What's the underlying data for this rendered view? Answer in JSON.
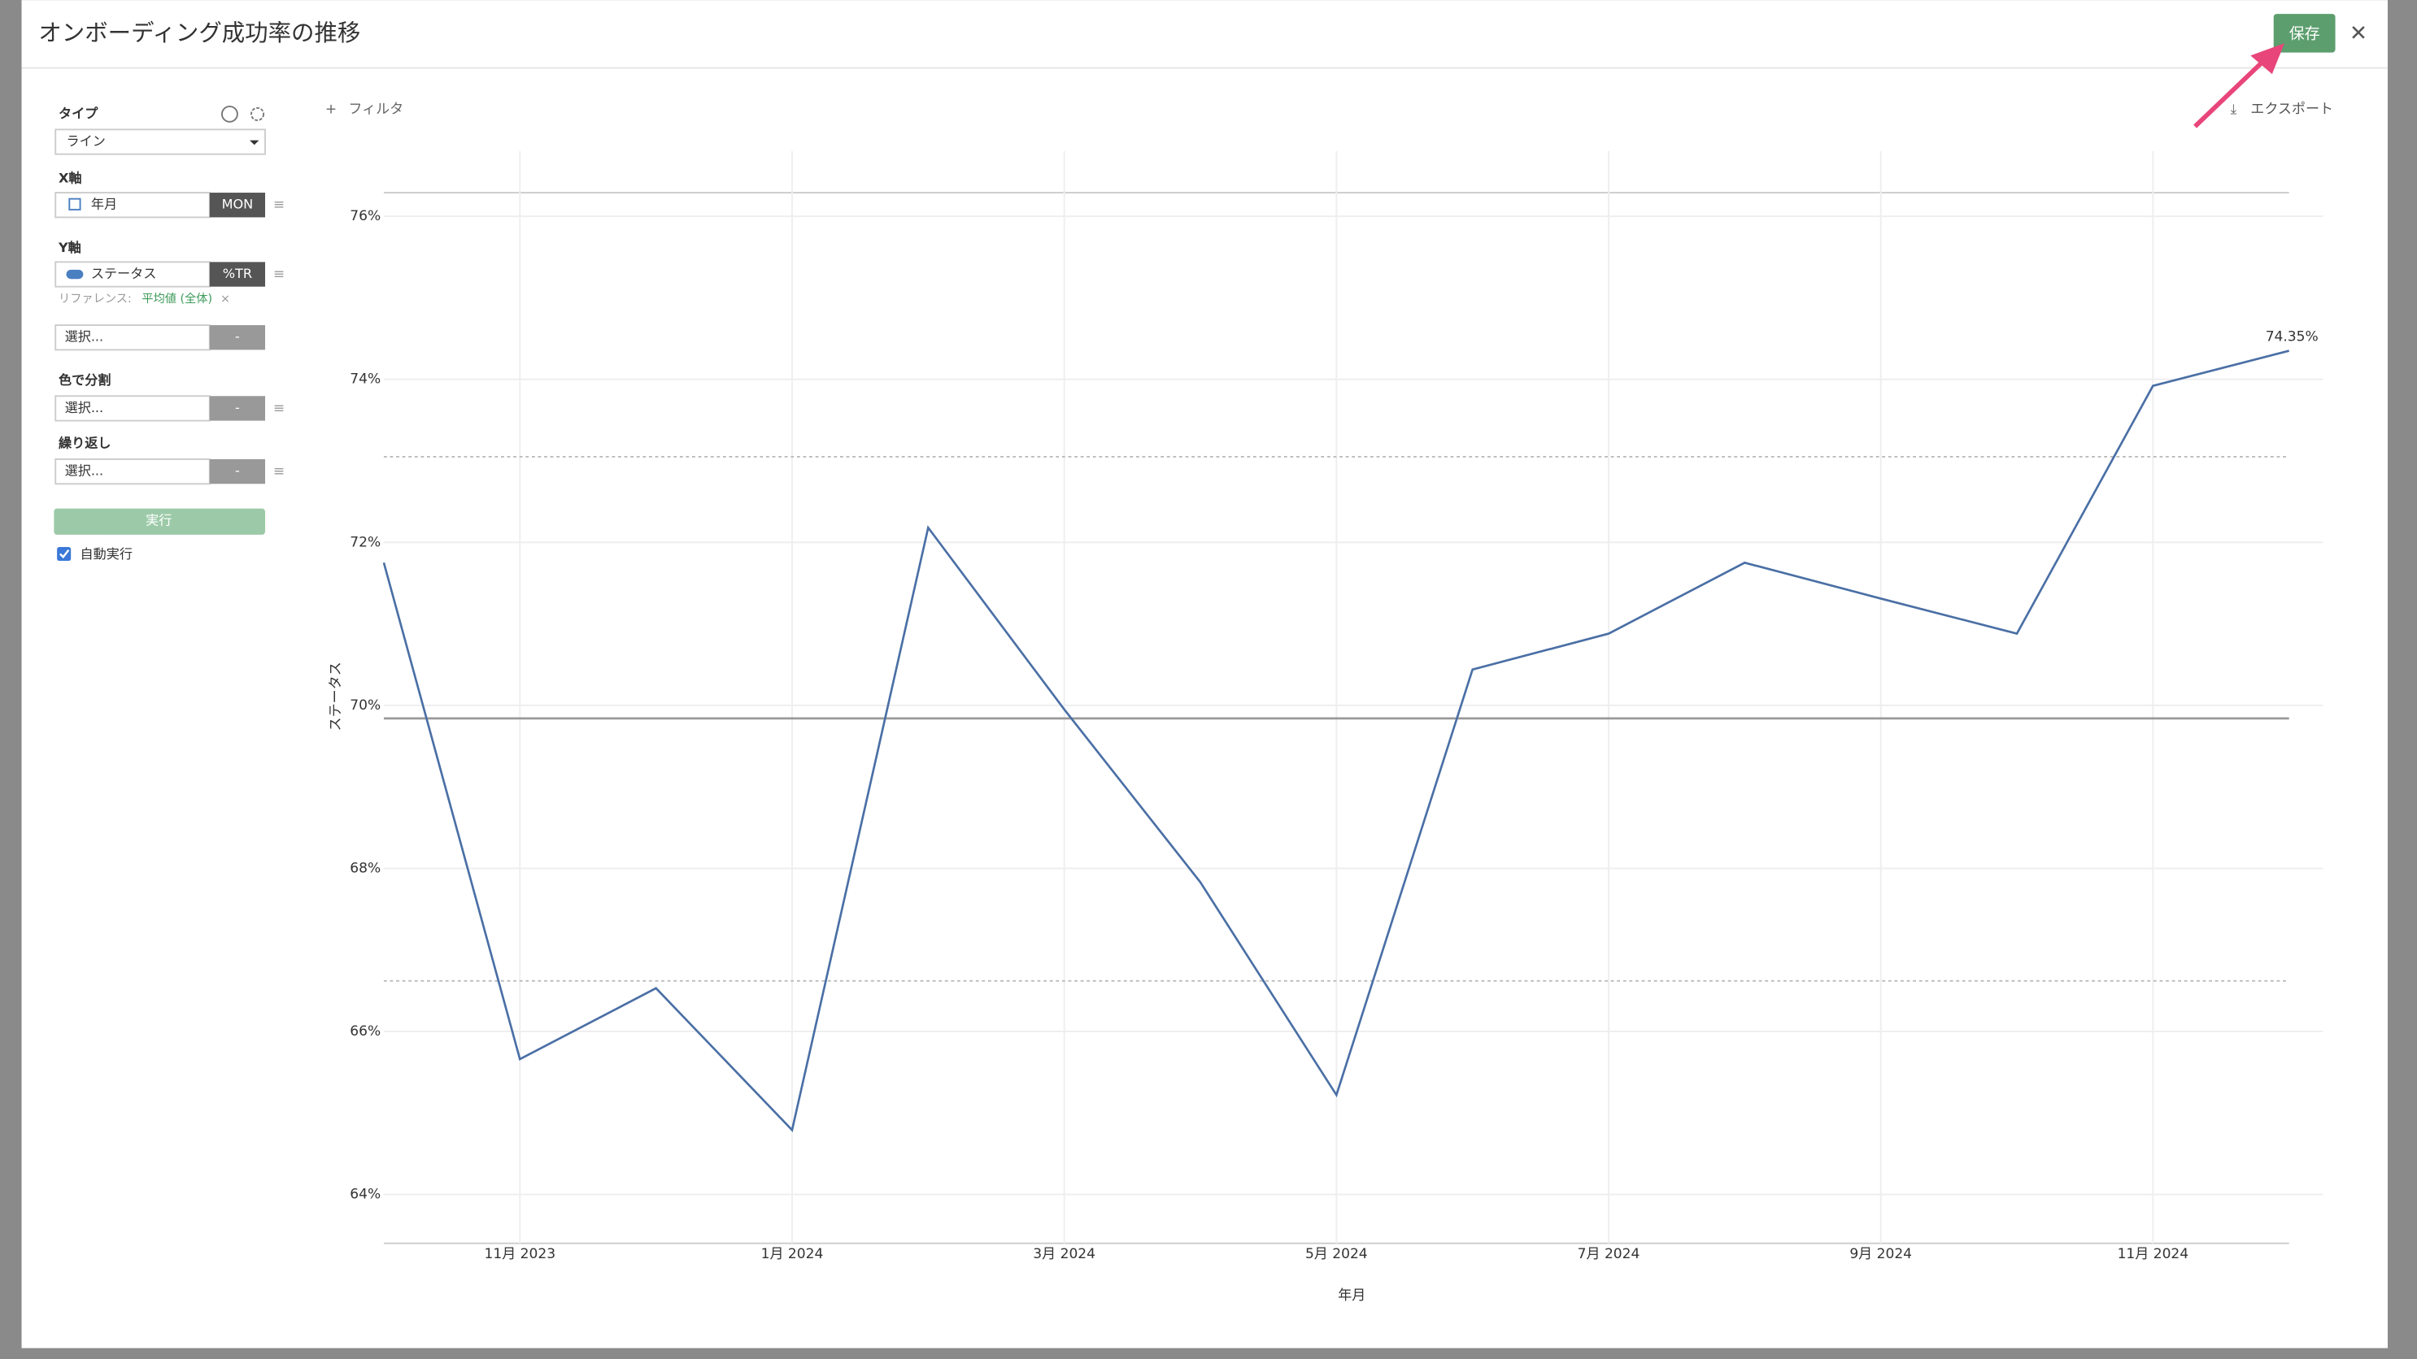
{
  "ui": {
    "title": "オンボーディング成功率の推移",
    "save": "保存",
    "filter": "フィルタ",
    "export": "エクスポート",
    "sidebar": {
      "type_label": "タイプ",
      "type_value": "ライン",
      "x_label": "X軸",
      "x_field": "年月",
      "x_unit": "MON",
      "y_label": "Y軸",
      "y_field": "ステータス",
      "y_agg": "%TR",
      "reference_prefix": "リファレンス:",
      "reference_value": "平均値 (全体)",
      "select1": "選択...",
      "color_label": "色で分割",
      "select2": "選択...",
      "repeat_label": "繰り返し",
      "select3": "選択...",
      "dash": "-",
      "run": "実行",
      "auto_run": "自動実行"
    }
  },
  "chart_data": {
    "type": "line",
    "x_label": "年月",
    "y_label": "ステータス",
    "x": [
      "2023-10",
      "2023-11",
      "2023-12",
      "2024-01",
      "2024-02",
      "2024-03",
      "2024-04",
      "2024-05",
      "2024-06",
      "2024-07",
      "2024-08",
      "2024-09",
      "2024-10",
      "2024-11",
      "2024-12"
    ],
    "xticks": [
      {
        "value": "2023-11",
        "label": "11月 2023"
      },
      {
        "value": "2024-01",
        "label": "1月 2024"
      },
      {
        "value": "2024-03",
        "label": "3月 2024"
      },
      {
        "value": "2024-05",
        "label": "5月 2024"
      },
      {
        "value": "2024-07",
        "label": "7月 2024"
      },
      {
        "value": "2024-09",
        "label": "9月 2024"
      },
      {
        "value": "2024-11",
        "label": "11月 2024"
      }
    ],
    "series": [
      {
        "name": "ステータス",
        "color": "#4a6fa5",
        "values": [
          71.75,
          65.66,
          66.53,
          64.79,
          72.18,
          69.95,
          67.83,
          65.22,
          70.44,
          70.88,
          71.75,
          71.31,
          70.88,
          73.92,
          74.35
        ],
        "value_labels": [
          null,
          null,
          null,
          null,
          null,
          null,
          null,
          null,
          null,
          null,
          null,
          null,
          null,
          null,
          "74.35%"
        ]
      }
    ],
    "reference_lines": [
      {
        "value": 69.84,
        "style": "solid"
      },
      {
        "value": 73.05,
        "style": "dotted"
      },
      {
        "value": 66.62,
        "style": "dotted"
      }
    ],
    "ylim": [
      63.4,
      76.8
    ],
    "yticks": [
      {
        "value": 64,
        "label": "64%"
      },
      {
        "value": 66,
        "label": "66%"
      },
      {
        "value": 68,
        "label": "68%"
      },
      {
        "value": 70,
        "label": "70%"
      },
      {
        "value": 72,
        "label": "72%"
      },
      {
        "value": 74,
        "label": "74%"
      },
      {
        "value": 76,
        "label": "76%"
      }
    ],
    "grid": true
  }
}
